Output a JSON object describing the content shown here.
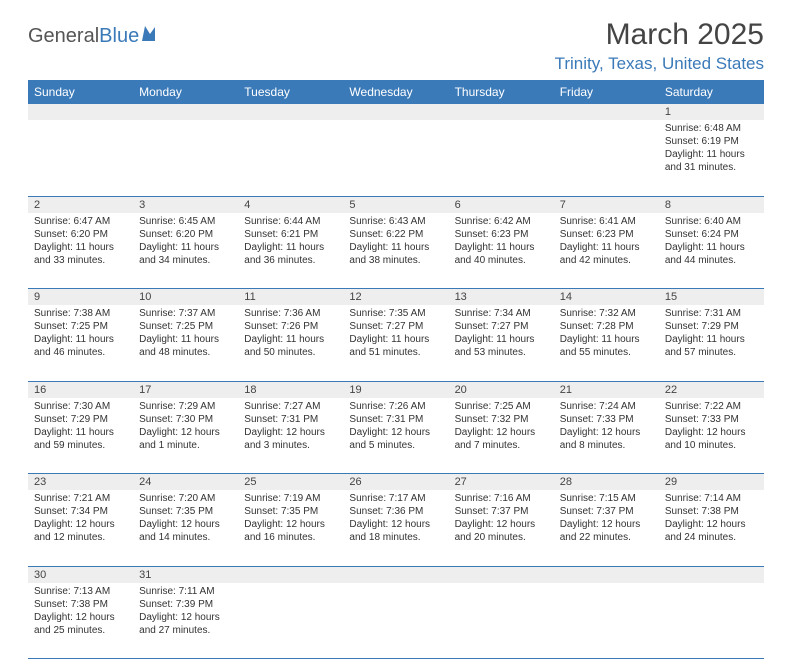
{
  "logo": {
    "text_a": "General",
    "text_b": "Blue",
    "text_color_a": "#555555",
    "text_color_b": "#3b7ab8"
  },
  "title": "March 2025",
  "location": "Trinity, Texas, United States",
  "header_bg": "#3b7ab8",
  "daynum_bg": "#eeeeee",
  "border_color": "#3b7ab8",
  "background_color": "#ffffff",
  "font_family": "Arial",
  "days": [
    "Sunday",
    "Monday",
    "Tuesday",
    "Wednesday",
    "Thursday",
    "Friday",
    "Saturday"
  ],
  "weeks": [
    {
      "nums": [
        "",
        "",
        "",
        "",
        "",
        "",
        "1"
      ],
      "cells": [
        null,
        null,
        null,
        null,
        null,
        null,
        {
          "sunrise": "Sunrise: 6:48 AM",
          "sunset": "Sunset: 6:19 PM",
          "daylight": "Daylight: 11 hours and 31 minutes."
        }
      ]
    },
    {
      "nums": [
        "2",
        "3",
        "4",
        "5",
        "6",
        "7",
        "8"
      ],
      "cells": [
        {
          "sunrise": "Sunrise: 6:47 AM",
          "sunset": "Sunset: 6:20 PM",
          "daylight": "Daylight: 11 hours and 33 minutes."
        },
        {
          "sunrise": "Sunrise: 6:45 AM",
          "sunset": "Sunset: 6:20 PM",
          "daylight": "Daylight: 11 hours and 34 minutes."
        },
        {
          "sunrise": "Sunrise: 6:44 AM",
          "sunset": "Sunset: 6:21 PM",
          "daylight": "Daylight: 11 hours and 36 minutes."
        },
        {
          "sunrise": "Sunrise: 6:43 AM",
          "sunset": "Sunset: 6:22 PM",
          "daylight": "Daylight: 11 hours and 38 minutes."
        },
        {
          "sunrise": "Sunrise: 6:42 AM",
          "sunset": "Sunset: 6:23 PM",
          "daylight": "Daylight: 11 hours and 40 minutes."
        },
        {
          "sunrise": "Sunrise: 6:41 AM",
          "sunset": "Sunset: 6:23 PM",
          "daylight": "Daylight: 11 hours and 42 minutes."
        },
        {
          "sunrise": "Sunrise: 6:40 AM",
          "sunset": "Sunset: 6:24 PM",
          "daylight": "Daylight: 11 hours and 44 minutes."
        }
      ]
    },
    {
      "nums": [
        "9",
        "10",
        "11",
        "12",
        "13",
        "14",
        "15"
      ],
      "cells": [
        {
          "sunrise": "Sunrise: 7:38 AM",
          "sunset": "Sunset: 7:25 PM",
          "daylight": "Daylight: 11 hours and 46 minutes."
        },
        {
          "sunrise": "Sunrise: 7:37 AM",
          "sunset": "Sunset: 7:25 PM",
          "daylight": "Daylight: 11 hours and 48 minutes."
        },
        {
          "sunrise": "Sunrise: 7:36 AM",
          "sunset": "Sunset: 7:26 PM",
          "daylight": "Daylight: 11 hours and 50 minutes."
        },
        {
          "sunrise": "Sunrise: 7:35 AM",
          "sunset": "Sunset: 7:27 PM",
          "daylight": "Daylight: 11 hours and 51 minutes."
        },
        {
          "sunrise": "Sunrise: 7:34 AM",
          "sunset": "Sunset: 7:27 PM",
          "daylight": "Daylight: 11 hours and 53 minutes."
        },
        {
          "sunrise": "Sunrise: 7:32 AM",
          "sunset": "Sunset: 7:28 PM",
          "daylight": "Daylight: 11 hours and 55 minutes."
        },
        {
          "sunrise": "Sunrise: 7:31 AM",
          "sunset": "Sunset: 7:29 PM",
          "daylight": "Daylight: 11 hours and 57 minutes."
        }
      ]
    },
    {
      "nums": [
        "16",
        "17",
        "18",
        "19",
        "20",
        "21",
        "22"
      ],
      "cells": [
        {
          "sunrise": "Sunrise: 7:30 AM",
          "sunset": "Sunset: 7:29 PM",
          "daylight": "Daylight: 11 hours and 59 minutes."
        },
        {
          "sunrise": "Sunrise: 7:29 AM",
          "sunset": "Sunset: 7:30 PM",
          "daylight": "Daylight: 12 hours and 1 minute."
        },
        {
          "sunrise": "Sunrise: 7:27 AM",
          "sunset": "Sunset: 7:31 PM",
          "daylight": "Daylight: 12 hours and 3 minutes."
        },
        {
          "sunrise": "Sunrise: 7:26 AM",
          "sunset": "Sunset: 7:31 PM",
          "daylight": "Daylight: 12 hours and 5 minutes."
        },
        {
          "sunrise": "Sunrise: 7:25 AM",
          "sunset": "Sunset: 7:32 PM",
          "daylight": "Daylight: 12 hours and 7 minutes."
        },
        {
          "sunrise": "Sunrise: 7:24 AM",
          "sunset": "Sunset: 7:33 PM",
          "daylight": "Daylight: 12 hours and 8 minutes."
        },
        {
          "sunrise": "Sunrise: 7:22 AM",
          "sunset": "Sunset: 7:33 PM",
          "daylight": "Daylight: 12 hours and 10 minutes."
        }
      ]
    },
    {
      "nums": [
        "23",
        "24",
        "25",
        "26",
        "27",
        "28",
        "29"
      ],
      "cells": [
        {
          "sunrise": "Sunrise: 7:21 AM",
          "sunset": "Sunset: 7:34 PM",
          "daylight": "Daylight: 12 hours and 12 minutes."
        },
        {
          "sunrise": "Sunrise: 7:20 AM",
          "sunset": "Sunset: 7:35 PM",
          "daylight": "Daylight: 12 hours and 14 minutes."
        },
        {
          "sunrise": "Sunrise: 7:19 AM",
          "sunset": "Sunset: 7:35 PM",
          "daylight": "Daylight: 12 hours and 16 minutes."
        },
        {
          "sunrise": "Sunrise: 7:17 AM",
          "sunset": "Sunset: 7:36 PM",
          "daylight": "Daylight: 12 hours and 18 minutes."
        },
        {
          "sunrise": "Sunrise: 7:16 AM",
          "sunset": "Sunset: 7:37 PM",
          "daylight": "Daylight: 12 hours and 20 minutes."
        },
        {
          "sunrise": "Sunrise: 7:15 AM",
          "sunset": "Sunset: 7:37 PM",
          "daylight": "Daylight: 12 hours and 22 minutes."
        },
        {
          "sunrise": "Sunrise: 7:14 AM",
          "sunset": "Sunset: 7:38 PM",
          "daylight": "Daylight: 12 hours and 24 minutes."
        }
      ]
    },
    {
      "nums": [
        "30",
        "31",
        "",
        "",
        "",
        "",
        ""
      ],
      "cells": [
        {
          "sunrise": "Sunrise: 7:13 AM",
          "sunset": "Sunset: 7:38 PM",
          "daylight": "Daylight: 12 hours and 25 minutes."
        },
        {
          "sunrise": "Sunrise: 7:11 AM",
          "sunset": "Sunset: 7:39 PM",
          "daylight": "Daylight: 12 hours and 27 minutes."
        },
        null,
        null,
        null,
        null,
        null
      ]
    }
  ]
}
